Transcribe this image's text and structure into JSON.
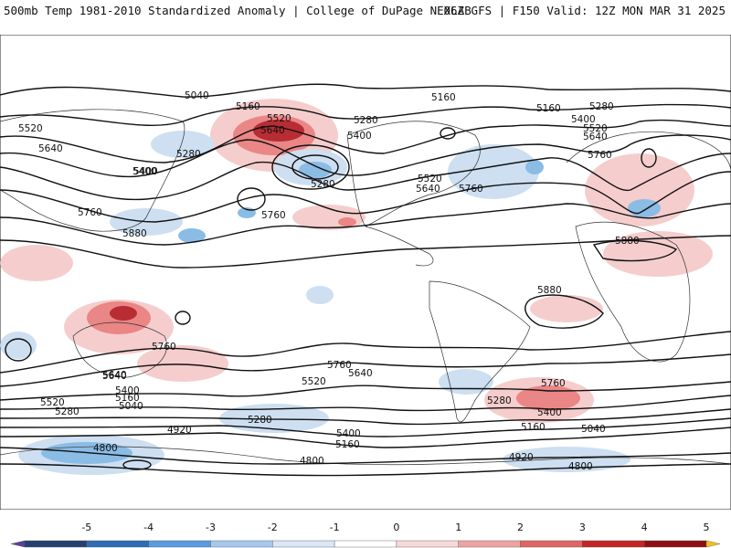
{
  "header": {
    "left_title": "500mb Temp 1981-2010 Standardized Anomaly | College of DuPage NEXLAB",
    "right_title": "06Z GFS | F150 Valid: 12Z MON MAR 31 2025"
  },
  "map": {
    "projection": "equirectangular global",
    "contour_labels": [
      {
        "text": "5040"
      },
      {
        "text": "5160"
      },
      {
        "text": "5520"
      },
      {
        "text": "5640"
      },
      {
        "text": "5280"
      },
      {
        "text": "5400"
      },
      {
        "text": "5160"
      },
      {
        "text": "5280"
      },
      {
        "text": "5400"
      },
      {
        "text": "5520"
      },
      {
        "text": "5640"
      },
      {
        "text": "5760"
      },
      {
        "text": "5160"
      },
      {
        "text": "5280"
      },
      {
        "text": "5400"
      },
      {
        "text": "5520"
      },
      {
        "text": "5640"
      },
      {
        "text": "5760"
      },
      {
        "text": "5520"
      },
      {
        "text": "5640"
      },
      {
        "text": "5400"
      },
      {
        "text": "5280"
      },
      {
        "text": "5760"
      },
      {
        "text": "5880"
      },
      {
        "text": "5760"
      },
      {
        "text": "5880"
      },
      {
        "text": "5880"
      },
      {
        "text": "5760"
      },
      {
        "text": "5640"
      },
      {
        "text": "5760"
      },
      {
        "text": "5640"
      },
      {
        "text": "5520"
      },
      {
        "text": "5400"
      },
      {
        "text": "5160"
      },
      {
        "text": "5040"
      },
      {
        "text": "5280"
      },
      {
        "text": "5520"
      },
      {
        "text": "5640"
      },
      {
        "text": "5760"
      },
      {
        "text": "5280"
      },
      {
        "text": "5400"
      },
      {
        "text": "5160"
      },
      {
        "text": "5040"
      },
      {
        "text": "5160"
      },
      {
        "text": "5400"
      },
      {
        "text": "4920"
      },
      {
        "text": "5280"
      },
      {
        "text": "4800"
      },
      {
        "text": "4800"
      },
      {
        "text": "4920"
      },
      {
        "text": "4800"
      }
    ],
    "anomaly_colors": {
      "strong_warm": "#b0171d",
      "warm": "#e87a7a",
      "light_warm": "#f5c8c8",
      "light_cool": "#c8dcf0",
      "cool": "#7fb5e3",
      "strong_cool": "#3a7fc9"
    }
  },
  "colorbar": {
    "labels": [
      "-5",
      "-4",
      "-3",
      "-2",
      "-1",
      "0",
      "1",
      "2",
      "3",
      "4",
      "5"
    ],
    "colors": [
      "#5a3fa0",
      "#26416f",
      "#2f6cb4",
      "#5a9be0",
      "#a6c8ee",
      "#d9e7f6",
      "#ffffff",
      "#f8d9d9",
      "#eea3a3",
      "#e06666",
      "#c52525",
      "#8e0f12",
      "#f2c31b"
    ]
  }
}
